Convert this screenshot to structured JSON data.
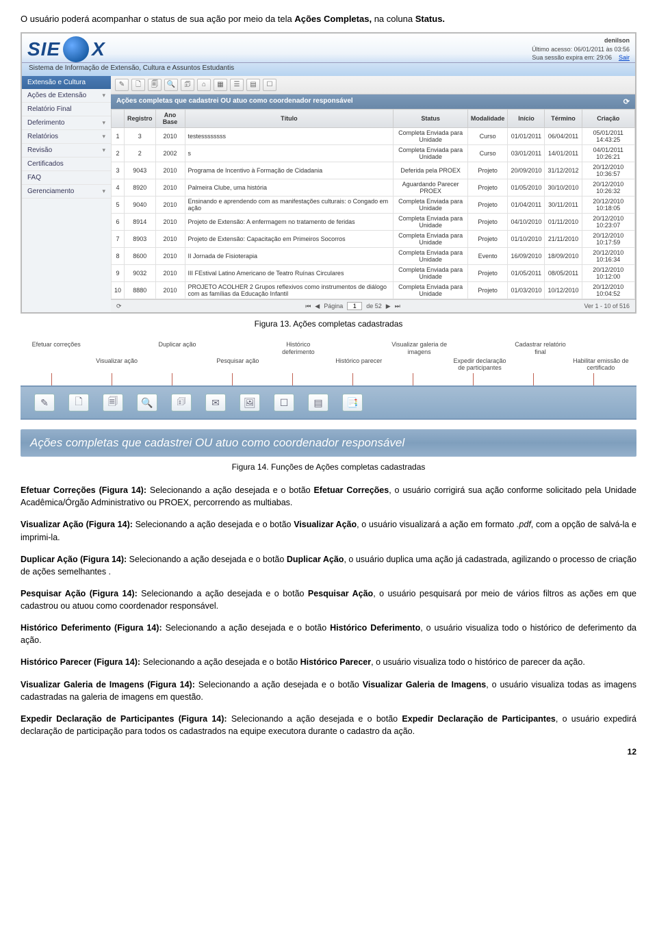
{
  "intro": {
    "prefix": "O usuário poderá acompanhar o status de sua ação por meio da tela ",
    "bold1": "Ações Completas,",
    "mid": " na coluna ",
    "bold2": "Status."
  },
  "app": {
    "logo_text": "SIE",
    "logo_suffix": "X",
    "user": "denilson",
    "last_access": "Último acesso: 06/01/2011 às 03:56",
    "session_expires": "Sua sessão expira em: 29:06",
    "logout": "Sair",
    "system_title": "Sistema de Informação de Extensão, Cultura e Assuntos Estudantis",
    "sidebar_header": "Extensão e Cultura",
    "sidebar": [
      {
        "label": "Ações de Extensão",
        "arrow": "▾"
      },
      {
        "label": "Relatório Final",
        "arrow": ""
      },
      {
        "label": "Deferimento",
        "arrow": "▾"
      },
      {
        "label": "Relatórios",
        "arrow": "▾"
      },
      {
        "label": "Revisão",
        "arrow": "▾"
      },
      {
        "label": "Certificados",
        "arrow": ""
      },
      {
        "label": "FAQ",
        "arrow": ""
      },
      {
        "label": "Gerenciamento",
        "arrow": "▾"
      }
    ],
    "toolbar_icons": [
      "✎",
      "🗋",
      "🗐",
      "🔍",
      "🗊",
      "⌂",
      "▦",
      "☰",
      "▤",
      "☐"
    ],
    "grid_title": "Ações completas que cadastrei OU atuo como coordenador responsável",
    "columns": [
      "",
      "Registro",
      "Ano Base",
      "Título",
      "Status",
      "Modalidade",
      "Início",
      "Término",
      "Criação"
    ],
    "rows": [
      [
        "1",
        "3",
        "2010",
        "testessssssss",
        "Completa Enviada para Unidade",
        "Curso",
        "01/01/2011",
        "06/04/2011",
        "05/01/2011 14:43:25"
      ],
      [
        "2",
        "2",
        "2002",
        "s",
        "Completa Enviada para Unidade",
        "Curso",
        "03/01/2011",
        "14/01/2011",
        "04/01/2011 10:26:21"
      ],
      [
        "3",
        "9043",
        "2010",
        "Programa de Incentivo à Formação de Cidadania",
        "Deferida pela PROEX",
        "Projeto",
        "20/09/2010",
        "31/12/2012",
        "20/12/2010 10:36:57"
      ],
      [
        "4",
        "8920",
        "2010",
        "Palmeira Clube, uma história",
        "Aguardando Parecer PROEX",
        "Projeto",
        "01/05/2010",
        "30/10/2010",
        "20/12/2010 10:26:32"
      ],
      [
        "5",
        "9040",
        "2010",
        "Ensinando e aprendendo com as manifestações culturais: o Congado em ação",
        "Completa Enviada para Unidade",
        "Projeto",
        "01/04/2011",
        "30/11/2011",
        "20/12/2010 10:18:05"
      ],
      [
        "6",
        "8914",
        "2010",
        "Projeto de Extensão: A enfermagem no tratamento de feridas",
        "Completa Enviada para Unidade",
        "Projeto",
        "04/10/2010",
        "01/11/2010",
        "20/12/2010 10:23:07"
      ],
      [
        "7",
        "8903",
        "2010",
        "Projeto de Extensão: Capacitação em Primeiros Socorros",
        "Completa Enviada para Unidade",
        "Projeto",
        "01/10/2010",
        "21/11/2010",
        "20/12/2010 10:17:59"
      ],
      [
        "8",
        "8600",
        "2010",
        "II Jornada de Fisioterapia",
        "Completa Enviada para Unidade",
        "Evento",
        "16/09/2010",
        "18/09/2010",
        "20/12/2010 10:16:34"
      ],
      [
        "9",
        "9032",
        "2010",
        "III FEstival Latino Americano de Teatro Ruínas Circulares",
        "Completa Enviada para Unidade",
        "Projeto",
        "01/05/2011",
        "08/05/2011",
        "20/12/2010 10:12:00"
      ],
      [
        "10",
        "8880",
        "2010",
        "PROJETO ACOLHER 2 Grupos reflexivos como instrumentos de diálogo com as famílias da Educação Infantil",
        "Completa Enviada para Unidade",
        "Projeto",
        "01/03/2010",
        "10/12/2010",
        "20/12/2010 10:04:52"
      ]
    ],
    "pager_prefix": "Página",
    "pager_page": "1",
    "pager_of": "de 52",
    "pager_view": "Ver 1 - 10 of 516"
  },
  "fig13_caption": "Figura 13. Ações completas cadastradas",
  "toolbar_labels_row1": [
    "Efetuar correções",
    "",
    "Duplicar ação",
    "",
    "Histórico deferimento",
    "",
    "Visualizar galeria de imagens",
    "",
    "Cadastrar relatório final",
    ""
  ],
  "toolbar_labels_row2": [
    "",
    "Visualizar ação",
    "",
    "Pesquisar ação",
    "",
    "Histórico parecer",
    "",
    "Expedir declaração de participantes",
    "",
    "Habilitar emissão de certificado"
  ],
  "icon_row": [
    "✎",
    "🗋",
    "🗐",
    "🔍",
    "🗊",
    "✉",
    "🖼",
    "☐",
    "▤",
    "📑"
  ],
  "banner_text": "Ações completas que cadastrei OU atuo como coordenador responsável",
  "fig14_caption": "Figura 14. Funções de Ações completas cadastradas",
  "paragraphs": [
    {
      "lead": "Efetuar Correções (Figura 14):",
      "rest": " Selecionando a ação desejada e o botão ",
      "bold": "Efetuar Correções",
      "tail": ", o usuário corrigirá sua ação conforme solicitado pela Unidade Acadêmica/Órgão Administrativo ou PROEX, percorrendo as multiabas."
    },
    {
      "lead": "Visualizar Ação (Figura 14):",
      "rest": " Selecionando a ação desejada e o botão ",
      "bold": "Visualizar Ação",
      "tail": ", o usuário visualizará a ação em formato ",
      "italic": ".pdf",
      "tail2": ", com a opção de salvá-la e imprimi-la."
    },
    {
      "lead": "Duplicar Ação (Figura 14):",
      "rest": " Selecionando a ação desejada e o botão ",
      "bold": "Duplicar Ação",
      "tail": ", o usuário duplica uma ação já cadastrada, agilizando o processo de criação de ações semelhantes ."
    },
    {
      "lead": "Pesquisar Ação (Figura 14):",
      "rest": " Selecionando a ação desejada e o botão ",
      "bold": "Pesquisar Ação",
      "tail": ", o usuário pesquisará por meio de vários filtros as ações em que cadastrou ou atuou como coordenador responsável."
    },
    {
      "lead": "Histórico Deferimento (Figura 14):",
      "rest": " Selecionando a ação desejada e o botão ",
      "bold": "Histórico Deferimento",
      "tail": ", o usuário visualiza todo o histórico de deferimento da ação."
    },
    {
      "lead": "Histórico Parecer (Figura 14):",
      "rest": " Selecionando a ação desejada e o botão ",
      "bold": "Histórico Parecer",
      "tail": ", o usuário visualiza todo o histórico de parecer da ação."
    },
    {
      "lead": "Visualizar Galeria de Imagens (Figura 14):",
      "rest": " Selecionando a ação desejada e o botão ",
      "bold": "Visualizar Galeria de Imagens",
      "tail": ", o usuário visualiza todas as imagens cadastradas na galeria de imagens em questão."
    },
    {
      "lead": "Expedir Declaração de Participantes (Figura 14):",
      "rest": " Selecionando a ação desejada e o botão ",
      "bold": "Expedir Declaração de Participantes",
      "tail": ", o usuário expedirá declaração de participação para todos os cadastrados na equipe executora durante o cadastro da ação."
    }
  ],
  "page_number": "12",
  "colors": {
    "header_grad_top": "#a5bdd4",
    "header_grad_bot": "#8aa9c6",
    "connector": "#c06050"
  }
}
